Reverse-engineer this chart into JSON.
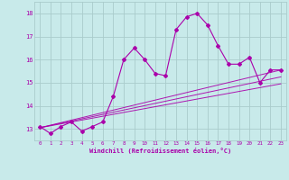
{
  "xlabel": "Windchill (Refroidissement éolien,°C)",
  "x": [
    0,
    1,
    2,
    3,
    4,
    5,
    6,
    7,
    8,
    9,
    10,
    11,
    12,
    13,
    14,
    15,
    16,
    17,
    18,
    19,
    20,
    21,
    22,
    23
  ],
  "y_main": [
    13.1,
    12.8,
    13.1,
    13.3,
    12.9,
    13.1,
    13.3,
    14.4,
    16.0,
    16.5,
    16.0,
    15.4,
    15.3,
    17.3,
    17.85,
    18.0,
    17.5,
    16.6,
    15.8,
    15.8,
    16.1,
    15.0,
    15.55,
    15.55
  ],
  "ylim": [
    12.5,
    18.5
  ],
  "xlim": [
    -0.5,
    23.5
  ],
  "yticks": [
    13,
    14,
    15,
    16,
    17,
    18
  ],
  "xticks": [
    0,
    1,
    2,
    3,
    4,
    5,
    6,
    7,
    8,
    9,
    10,
    11,
    12,
    13,
    14,
    15,
    16,
    17,
    18,
    19,
    20,
    21,
    22,
    23
  ],
  "line_color": "#aa00aa",
  "bg_color": "#c8eaea",
  "grid_color": "#aacccc",
  "trend_lines": [
    {
      "x0": 0,
      "y0": 13.05,
      "x1": 23,
      "y1": 15.55
    },
    {
      "x0": 0,
      "y0": 13.05,
      "x1": 23,
      "y1": 15.25
    },
    {
      "x0": 0,
      "y0": 13.05,
      "x1": 23,
      "y1": 14.95
    }
  ]
}
